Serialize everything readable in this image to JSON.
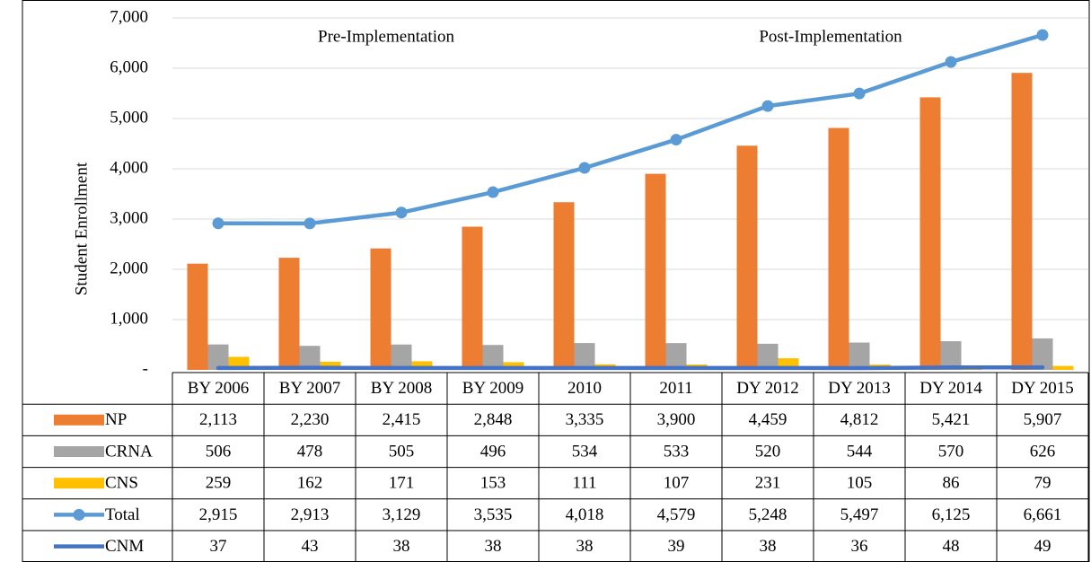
{
  "chart_data": {
    "type": "bar",
    "y_label": "Student Enrollment",
    "annotations": [
      "Pre-Implementation",
      "Post-Implementation"
    ],
    "categories": [
      "BY 2006",
      "BY 2007",
      "BY 2008",
      "BY 2009",
      "2010",
      "2011",
      "DY 2012",
      "DY 2013",
      "DY 2014",
      "DY 2015"
    ],
    "series": [
      {
        "name": "NP",
        "type": "bar",
        "color": "#ED7D31",
        "values": [
          2113,
          2230,
          2415,
          2848,
          3335,
          3900,
          4459,
          4812,
          5421,
          5907
        ],
        "value_labels": [
          "2,113",
          "2,230",
          "2,415",
          "2,848",
          "3,335",
          "3,900",
          "4,459",
          "4,812",
          "5,421",
          "5,907"
        ]
      },
      {
        "name": "CRNA",
        "type": "bar",
        "color": "#A5A5A5",
        "values": [
          506,
          478,
          505,
          496,
          534,
          533,
          520,
          544,
          570,
          626
        ],
        "value_labels": [
          "506",
          "478",
          "505",
          "496",
          "534",
          "533",
          "520",
          "544",
          "570",
          "626"
        ]
      },
      {
        "name": "CNS",
        "type": "bar",
        "color": "#FFC000",
        "values": [
          259,
          162,
          171,
          153,
          111,
          107,
          231,
          105,
          86,
          79
        ],
        "value_labels": [
          "259",
          "162",
          "171",
          "153",
          "111",
          "107",
          "231",
          "105",
          "86",
          "79"
        ]
      },
      {
        "name": "Total",
        "type": "line",
        "marker": true,
        "color": "#5B9BD5",
        "values": [
          2915,
          2913,
          3129,
          3535,
          4018,
          4579,
          5248,
          5497,
          6125,
          6661
        ],
        "value_labels": [
          "2,915",
          "2,913",
          "3,129",
          "3,535",
          "4,018",
          "4,579",
          "5,248",
          "5,497",
          "6,125",
          "6,661"
        ]
      },
      {
        "name": "CNM",
        "type": "line",
        "marker": false,
        "color": "#4472C4",
        "values": [
          37,
          43,
          38,
          38,
          38,
          39,
          38,
          36,
          48,
          49
        ],
        "value_labels": [
          "37",
          "43",
          "38",
          "38",
          "38",
          "39",
          "38",
          "36",
          "48",
          "49"
        ]
      }
    ],
    "ylim": [
      0,
      7000
    ],
    "yticks": [
      {
        "value": 0,
        "label": "-"
      },
      {
        "value": 1000,
        "label": "1,000"
      },
      {
        "value": 2000,
        "label": "2,000"
      },
      {
        "value": 3000,
        "label": "3,000"
      },
      {
        "value": 4000,
        "label": "4,000"
      },
      {
        "value": 5000,
        "label": "5,000"
      },
      {
        "value": 6000,
        "label": "6,000"
      },
      {
        "value": 7000,
        "label": "7,000"
      }
    ],
    "grid": true
  }
}
